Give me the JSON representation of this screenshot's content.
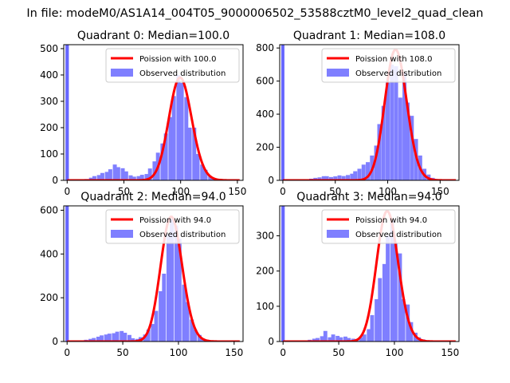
{
  "suptitle": "In file: modeM0/AS1A14_004T05_9000006502_53588cztM0_level2_quad_clean",
  "colors": {
    "poisson": "#ff0000",
    "observed": "#7f7fff",
    "spike": "#6666ff"
  },
  "chart_data": [
    {
      "type": "bar",
      "title": "Quadrant 0: Median=100.0",
      "median": 100.0,
      "xlim": [
        -3,
        155
      ],
      "ylim": [
        0,
        515
      ],
      "xticks": [
        0,
        50,
        100,
        150
      ],
      "yticks": [
        0,
        100,
        200,
        300,
        400,
        500
      ],
      "spike": {
        "x": 0,
        "value": 515
      },
      "legend": [
        "Poission with 100.0",
        "Observed distribution"
      ],
      "observed": {
        "bin_width": 3.5,
        "x": [
          17,
          21,
          24,
          28,
          31,
          35,
          38,
          42,
          45,
          49,
          52,
          56,
          59,
          63,
          66,
          70,
          73,
          77,
          80,
          84,
          87,
          91,
          94,
          98,
          101,
          105,
          108,
          112,
          115,
          119,
          122,
          126,
          129,
          133
        ],
        "values": [
          5,
          10,
          16,
          20,
          28,
          32,
          42,
          60,
          50,
          46,
          34,
          19,
          14,
          16,
          21,
          24,
          45,
          72,
          105,
          140,
          178,
          240,
          320,
          400,
          370,
          316,
          200,
          200,
          100,
          60,
          40,
          16,
          8,
          4
        ]
      },
      "poisson": {
        "lambda": 100.0,
        "peak": 390
      }
    },
    {
      "type": "bar",
      "title": "Quadrant 1: Median=108.0",
      "median": 108.0,
      "xlim": [
        -3,
        168
      ],
      "ylim": [
        0,
        820
      ],
      "xticks": [
        0,
        50,
        100,
        150
      ],
      "yticks": [
        0,
        200,
        400,
        600,
        800
      ],
      "spike": {
        "x": 0,
        "value": 820
      },
      "legend": [
        "Poission with 108.0",
        "Observed distribution"
      ],
      "observed": {
        "bin_width": 3.8,
        "x": [
          19,
          23,
          27,
          31,
          35,
          39,
          42,
          46,
          50,
          54,
          58,
          62,
          66,
          69,
          73,
          77,
          81,
          85,
          89,
          92,
          96,
          100,
          104,
          108,
          112,
          116,
          119,
          123,
          127,
          131,
          135,
          139,
          143
        ],
        "values": [
          5,
          7,
          10,
          15,
          18,
          25,
          25,
          20,
          24,
          30,
          26,
          32,
          40,
          55,
          70,
          95,
          110,
          150,
          210,
          340,
          450,
          590,
          700,
          690,
          500,
          650,
          470,
          390,
          250,
          150,
          70,
          35,
          15
        ]
      },
      "poisson": {
        "lambda": 108.0,
        "peak": 790
      }
    },
    {
      "type": "bar",
      "title": "Quadrant 2: Median=94.0",
      "median": 94.0,
      "xlim": [
        -3,
        158
      ],
      "ylim": [
        0,
        620
      ],
      "xticks": [
        0,
        50,
        100,
        150
      ],
      "yticks": [
        0,
        200,
        400,
        600
      ],
      "spike": {
        "x": 0,
        "value": 620
      },
      "legend": [
        "Poission with 94.0",
        "Observed distribution"
      ],
      "observed": {
        "bin_width": 3.5,
        "x": [
          17,
          21,
          24,
          28,
          31,
          35,
          38,
          42,
          45,
          49,
          52,
          56,
          59,
          63,
          66,
          70,
          73,
          77,
          80,
          84,
          87,
          91,
          94,
          98,
          101,
          105,
          108,
          112,
          115,
          119,
          122,
          126,
          129
        ],
        "values": [
          8,
          12,
          16,
          22,
          28,
          32,
          36,
          38,
          45,
          48,
          40,
          30,
          15,
          12,
          20,
          32,
          55,
          80,
          140,
          230,
          310,
          490,
          560,
          530,
          470,
          260,
          180,
          100,
          55,
          30,
          14,
          8,
          4
        ]
      },
      "poisson": {
        "lambda": 94.0,
        "peak": 570
      }
    },
    {
      "type": "bar",
      "title": "Quadrant 3: Median=94.0",
      "median": 94.0,
      "xlim": [
        -3,
        158
      ],
      "ylim": [
        0,
        385
      ],
      "xticks": [
        0,
        50,
        100,
        150
      ],
      "yticks": [
        0,
        100,
        200,
        300
      ],
      "spike": {
        "x": 0,
        "value": 385
      },
      "legend": [
        "Poission with 94.0",
        "Observed distribution"
      ],
      "observed": {
        "bin_width": 3.5,
        "x": [
          17,
          21,
          24,
          28,
          31,
          35,
          38,
          42,
          45,
          49,
          52,
          56,
          59,
          63,
          66,
          70,
          73,
          77,
          80,
          84,
          87,
          91,
          94,
          98,
          101,
          105,
          108,
          112,
          115,
          119,
          122,
          126,
          129
        ],
        "values": [
          2,
          3,
          5,
          8,
          10,
          15,
          30,
          12,
          20,
          16,
          12,
          14,
          10,
          8,
          6,
          12,
          20,
          35,
          75,
          120,
          180,
          220,
          300,
          345,
          280,
          250,
          120,
          105,
          55,
          25,
          12,
          6,
          3
        ]
      },
      "poisson": {
        "lambda": 94.0,
        "peak": 370
      }
    }
  ]
}
